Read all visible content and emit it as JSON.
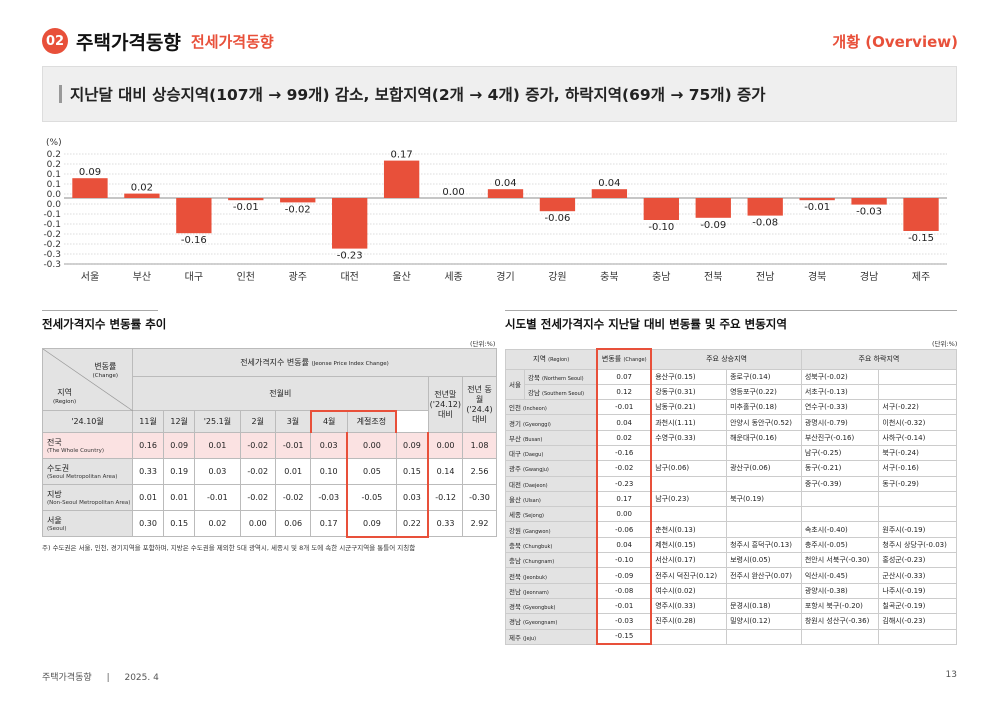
{
  "header": {
    "section_no": "02",
    "title": "주택가격동향",
    "subtitle": "전세가격동향",
    "overview": "개황 (Overview)"
  },
  "summary": "지난달 대비 상승지역(107개 → 99개) 감소, 보합지역(2개 → 4개) 증가, 하락지역(69개 → 75개) 증가",
  "chart_data": {
    "type": "bar",
    "ylabel": "(%)",
    "ylim": [
      -0.3,
      0.2
    ],
    "yticks": [
      "0.2",
      "0.2",
      "0.1",
      "0.1",
      "0.0",
      "0.0",
      "-0.1",
      "-0.1",
      "-0.2",
      "-0.2",
      "-0.3",
      "-0.3"
    ],
    "categories": [
      "서울",
      "부산",
      "대구",
      "인천",
      "광주",
      "대전",
      "울산",
      "세종",
      "경기",
      "강원",
      "충북",
      "충남",
      "전북",
      "전남",
      "경북",
      "경남",
      "제주"
    ],
    "values": [
      0.09,
      0.02,
      -0.16,
      -0.01,
      -0.02,
      -0.23,
      0.17,
      0.0,
      0.04,
      -0.06,
      0.04,
      -0.1,
      -0.09,
      -0.08,
      -0.01,
      -0.03,
      -0.15
    ],
    "labels": [
      "0.09",
      "0.02",
      "-0.16",
      "-0.01",
      "-0.02",
      "-0.23",
      "0.17",
      "0.00",
      "0.04",
      "-0.06",
      "0.04",
      "-0.10",
      "-0.09",
      "-0.08",
      "-0.01",
      "-0.03",
      "-0.15"
    ],
    "bar_color": "#e8503a"
  },
  "left_panel": {
    "title": "전세가격지수 변동률 추이",
    "unit": "(단위:%)",
    "corner_top": "변동률",
    "corner_top_en": "(Change)",
    "corner_bottom": "지역",
    "corner_bottom_en": "(Region)",
    "group_header": "전세가격지수 변동률",
    "group_header_en": "(Jeonse Price Index Change)",
    "mom_header": "전월비",
    "prev_year_end": "전년말",
    "prev_year_end_sub": "('24.12) 대비",
    "prev_year_same": "전년 동월",
    "prev_year_same_sub": "('24.4) 대비",
    "columns": [
      "'24.10월",
      "11월",
      "12월",
      "'25.1월",
      "2월",
      "3월",
      "4월",
      "계절조정"
    ],
    "rows": [
      {
        "name": "전국",
        "en": "(The Whole Country)",
        "values": [
          "0.16",
          "0.09",
          "0.01",
          "-0.02",
          "-0.01",
          "0.03",
          "0.00",
          "0.09",
          "0.00",
          "1.08"
        ]
      },
      {
        "name": "수도권",
        "en": "(Seoul Metropolitan Area)",
        "values": [
          "0.33",
          "0.19",
          "0.03",
          "-0.02",
          "0.01",
          "0.10",
          "0.05",
          "0.15",
          "0.14",
          "2.56"
        ]
      },
      {
        "name": "지방",
        "en": "(Non-Seoul Metropolitan Area)",
        "values": [
          "0.01",
          "0.01",
          "-0.01",
          "-0.02",
          "-0.02",
          "-0.03",
          "-0.05",
          "0.03",
          "-0.12",
          "-0.30"
        ]
      },
      {
        "name": "서울",
        "en": "(Seoul)",
        "values": [
          "0.30",
          "0.15",
          "0.02",
          "0.00",
          "0.06",
          "0.17",
          "0.09",
          "0.22",
          "0.33",
          "2.92"
        ]
      }
    ],
    "note": "주) 수도권은 서울, 인천, 경기지역을 포함하며, 지방은 수도권을 제외한 5대 광역시, 세종시 및 8개 도에 속한 시군구지역을 통틀어 지칭함"
  },
  "right_panel": {
    "title": "시도별 전세가격지수 지난달 대비 변동률 및 주요 변동지역",
    "unit": "(단위:%)",
    "head_region": "지역",
    "head_region_en": "(Region)",
    "head_change": "변동률",
    "head_change_en": "(Change)",
    "head_up": "주요 상승지역",
    "head_down": "주요 하락지역",
    "seoul_label": "서울",
    "rows": [
      {
        "region": "강북",
        "en": "(Northern Seoul)",
        "change": "0.07",
        "up": [
          "용산구(0.15)",
          "종로구(0.14)"
        ],
        "down": [
          "성북구(-0.02)",
          ""
        ]
      },
      {
        "region": "강남",
        "en": "(Southern Seoul)",
        "change": "0.12",
        "up": [
          "강동구(0.31)",
          "영등포구(0.22)"
        ],
        "down": [
          "서초구(-0.13)",
          ""
        ]
      },
      {
        "region": "인천",
        "en": "(Incheon)",
        "change": "-0.01",
        "up": [
          "남동구(0.21)",
          "미추홀구(0.18)"
        ],
        "down": [
          "연수구(-0.33)",
          "서구(-0.22)"
        ]
      },
      {
        "region": "경기",
        "en": "(Gyeonggi)",
        "change": "0.04",
        "up": [
          "과천시(1.11)",
          "안양시 동안구(0.52)"
        ],
        "down": [
          "광명시(-0.79)",
          "이천시(-0.32)"
        ]
      },
      {
        "region": "부산",
        "en": "(Busan)",
        "change": "0.02",
        "up": [
          "수영구(0.33)",
          "해운대구(0.16)"
        ],
        "down": [
          "부산진구(-0.16)",
          "사하구(-0.14)"
        ]
      },
      {
        "region": "대구",
        "en": "(Daegu)",
        "change": "-0.16",
        "up": [
          "",
          ""
        ],
        "down": [
          "남구(-0.25)",
          "북구(-0.24)"
        ]
      },
      {
        "region": "광주",
        "en": "(Gwangju)",
        "change": "-0.02",
        "up": [
          "남구(0.06)",
          "광산구(0.06)"
        ],
        "down": [
          "동구(-0.21)",
          "서구(-0.16)"
        ]
      },
      {
        "region": "대전",
        "en": "(Daejeon)",
        "change": "-0.23",
        "up": [
          "",
          ""
        ],
        "down": [
          "중구(-0.39)",
          "동구(-0.29)"
        ]
      },
      {
        "region": "울산",
        "en": "(Ulsan)",
        "change": "0.17",
        "up": [
          "남구(0.23)",
          "북구(0.19)"
        ],
        "down": [
          "",
          ""
        ]
      },
      {
        "region": "세종",
        "en": "(Sejong)",
        "change": "0.00",
        "up": [
          "",
          ""
        ],
        "down": [
          "",
          ""
        ]
      },
      {
        "region": "강원",
        "en": "(Gangwon)",
        "change": "-0.06",
        "up": [
          "춘천시(0.13)",
          ""
        ],
        "down": [
          "속초시(-0.40)",
          "원주시(-0.19)"
        ]
      },
      {
        "region": "충북",
        "en": "(Chungbuk)",
        "change": "0.04",
        "up": [
          "제천시(0.15)",
          "청주시 흥덕구(0.13)"
        ],
        "down": [
          "충주시(-0.05)",
          "청주시 상당구(-0.03)"
        ]
      },
      {
        "region": "충남",
        "en": "(Chungnam)",
        "change": "-0.10",
        "up": [
          "서산시(0.17)",
          "보령시(0.05)"
        ],
        "down": [
          "천안시 서북구(-0.30)",
          "홍성군(-0.23)"
        ]
      },
      {
        "region": "전북",
        "en": "(Jeonbuk)",
        "change": "-0.09",
        "up": [
          "전주시 덕진구(0.12)",
          "전주시 완산구(0.07)"
        ],
        "down": [
          "익산시(-0.45)",
          "군산시(-0.33)"
        ]
      },
      {
        "region": "전남",
        "en": "(Jeonnam)",
        "change": "-0.08",
        "up": [
          "여수시(0.02)",
          ""
        ],
        "down": [
          "광양시(-0.38)",
          "나주시(-0.19)"
        ]
      },
      {
        "region": "경북",
        "en": "(Gyeongbuk)",
        "change": "-0.01",
        "up": [
          "영주시(0.33)",
          "문경시(0.18)"
        ],
        "down": [
          "포항시 북구(-0.20)",
          "칠곡군(-0.19)"
        ]
      },
      {
        "region": "경남",
        "en": "(Gyeongnam)",
        "change": "-0.03",
        "up": [
          "진주시(0.28)",
          "밀양시(0.12)"
        ],
        "down": [
          "창원시 성산구(-0.36)",
          "김해시(-0.23)"
        ]
      },
      {
        "region": "제주",
        "en": "(Jeju)",
        "change": "-0.15",
        "up": [
          "",
          ""
        ],
        "down": [
          "",
          ""
        ]
      }
    ]
  },
  "footer": {
    "left": "주택가격동향",
    "sep": "|",
    "date": "2025. 4",
    "page": "13"
  }
}
